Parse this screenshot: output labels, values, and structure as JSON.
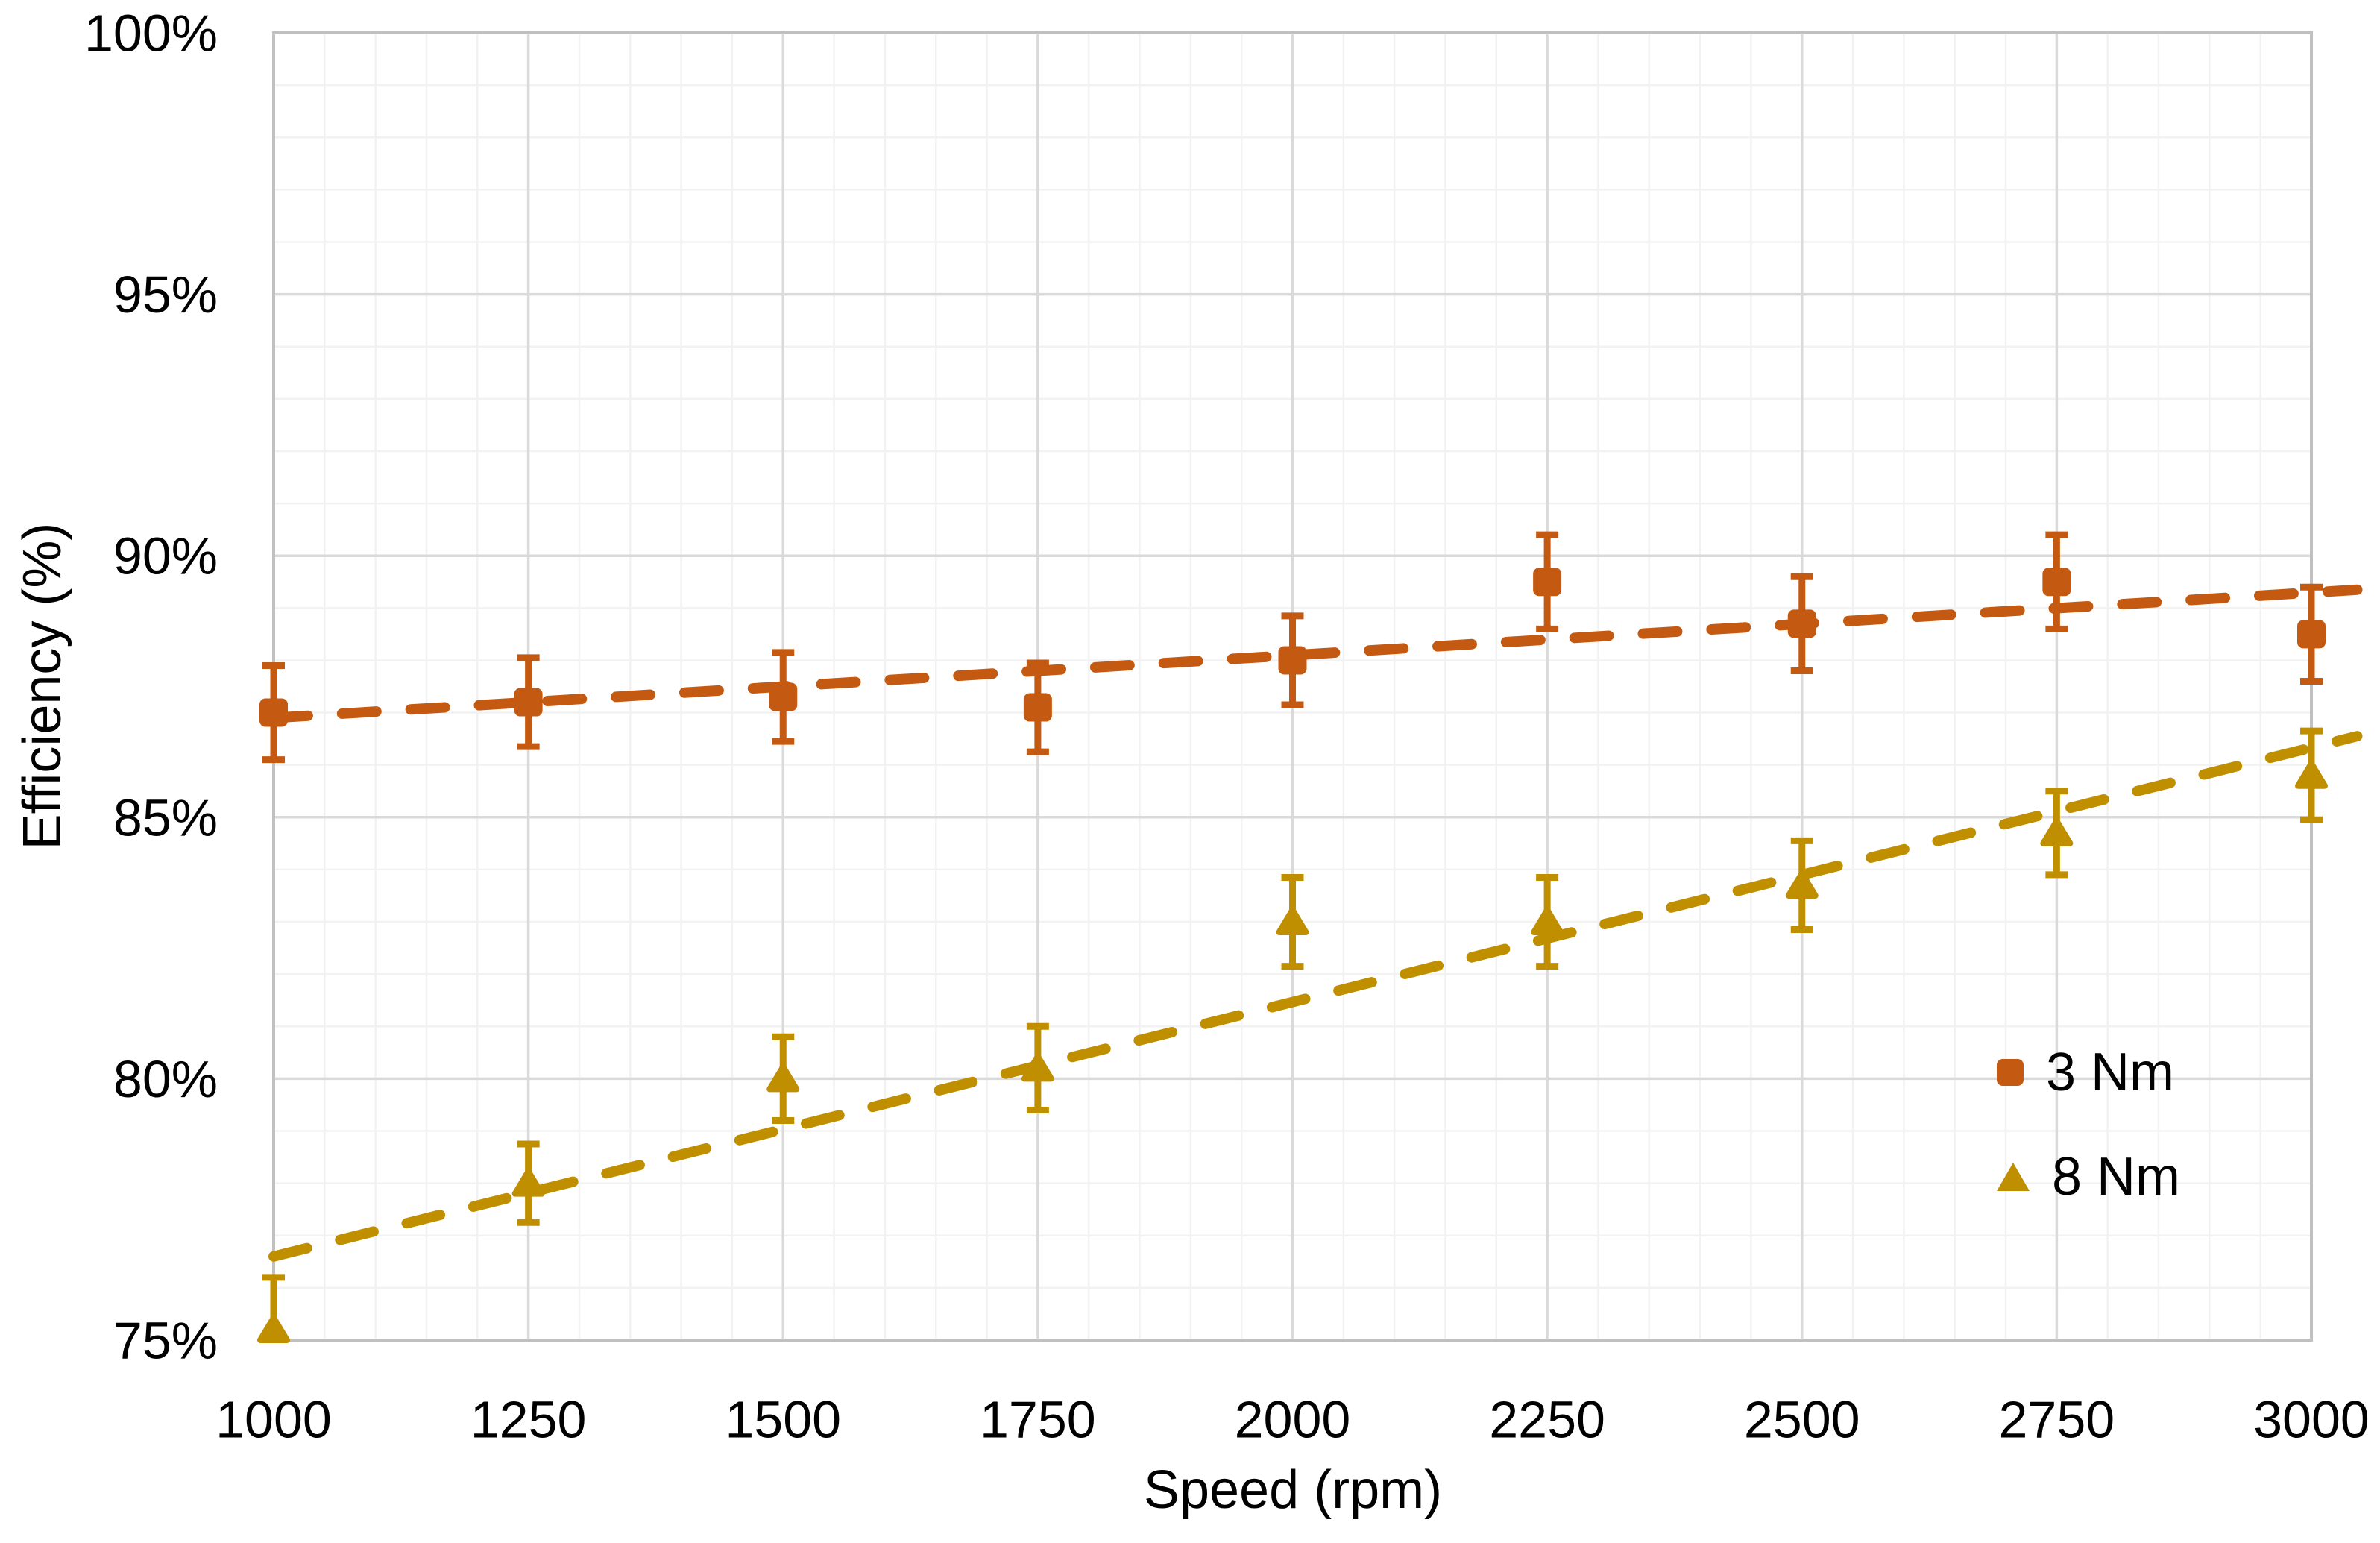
{
  "chart_data": {
    "type": "scatter",
    "title": "",
    "xlabel": "Speed (rpm)",
    "ylabel": "Efficiency (%)",
    "grid": true,
    "legend_position": "inside-right",
    "x_axis": {
      "min": 1000,
      "max": 3000,
      "minor_step": 50,
      "ticks": [
        {
          "v": 1000,
          "label": "1000"
        },
        {
          "v": 1250,
          "label": "1250"
        },
        {
          "v": 1500,
          "label": "1500"
        },
        {
          "v": 1750,
          "label": "1750"
        },
        {
          "v": 2000,
          "label": "2000"
        },
        {
          "v": 2250,
          "label": "2250"
        },
        {
          "v": 2500,
          "label": "2500"
        },
        {
          "v": 2750,
          "label": "2750"
        },
        {
          "v": 3000,
          "label": "3000"
        }
      ]
    },
    "y_axis": {
      "min": 75,
      "max": 100,
      "minor_step": 1,
      "ticks": [
        {
          "v": 75,
          "label": "75%"
        },
        {
          "v": 80,
          "label": "80%"
        },
        {
          "v": 85,
          "label": "85%"
        },
        {
          "v": 90,
          "label": "90%"
        },
        {
          "v": 95,
          "label": "95%"
        },
        {
          "v": 100,
          "label": "100%"
        }
      ]
    },
    "series": [
      {
        "name": "3 Nm",
        "marker": "square",
        "color": "#C45911",
        "x": [
          1000,
          1250,
          1500,
          1750,
          2000,
          2250,
          2500,
          2750,
          3000
        ],
        "y": [
          87.0,
          87.2,
          87.3,
          87.1,
          88.0,
          89.5,
          88.7,
          89.5,
          88.5
        ],
        "err": [
          0.9,
          0.85,
          0.85,
          0.85,
          0.85,
          0.9,
          0.9,
          0.9,
          0.9
        ],
        "trend": {
          "type": "linear",
          "x1": 1000,
          "y1": 86.9,
          "x2": 3045,
          "y2": 89.35
        }
      },
      {
        "name": "8 Nm",
        "marker": "triangle",
        "color": "#BF8F00",
        "x": [
          1000,
          1250,
          1500,
          1750,
          2000,
          2250,
          2500,
          2750,
          3000
        ],
        "y": [
          75.2,
          78.0,
          80.0,
          80.2,
          83.0,
          83.0,
          83.7,
          84.7,
          85.8
        ],
        "err": [
          1.0,
          0.75,
          0.8,
          0.8,
          0.85,
          0.85,
          0.85,
          0.8,
          0.85
        ],
        "trend": {
          "type": "linear",
          "x1": 1000,
          "y1": 76.6,
          "x2": 3045,
          "y2": 86.55
        }
      }
    ],
    "colors": {
      "grid_minor": "#F2F2F2",
      "grid_major": "#DADADA",
      "plot_border": "#C0C0C0",
      "text": "#000000",
      "background": "#FFFFFF"
    }
  }
}
